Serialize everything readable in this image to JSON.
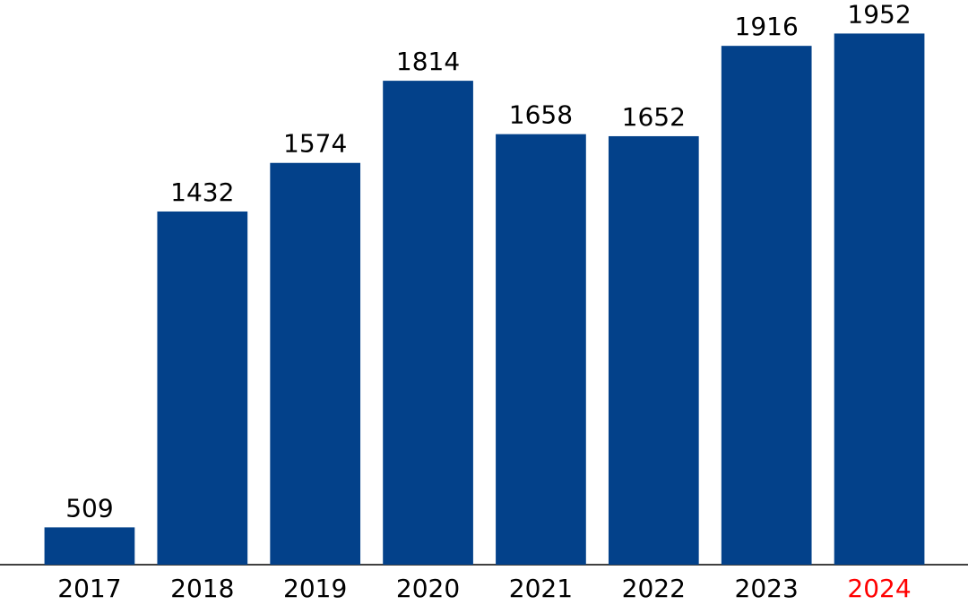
{
  "chart_data": {
    "type": "bar",
    "categories": [
      "2017",
      "2018",
      "2019",
      "2020",
      "2021",
      "2022",
      "2023",
      "2024"
    ],
    "values": [
      509,
      1432,
      1574,
      1814,
      1658,
      1652,
      1916,
      1952
    ],
    "color": "#03418a",
    "category_label_colors": [
      "#000000",
      "#000000",
      "#000000",
      "#000000",
      "#000000",
      "#000000",
      "#000000",
      "#ff0000"
    ],
    "ylim": [
      400,
      2050
    ]
  }
}
